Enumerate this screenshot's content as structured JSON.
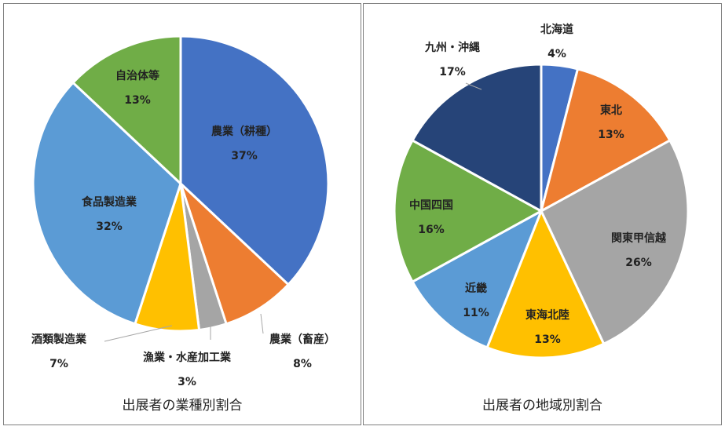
{
  "chart_data": [
    {
      "type": "pie",
      "title": "出展者の業種別割合",
      "slices": [
        {
          "label": "農業（耕種）",
          "value": 37,
          "value_label": "37%",
          "color": "#4472C4"
        },
        {
          "label": "農業（畜産）",
          "value": 8,
          "value_label": "8%",
          "color": "#ED7D31"
        },
        {
          "label": "漁業・水産加工業",
          "value": 3,
          "value_label": "3%",
          "color": "#A5A5A5"
        },
        {
          "label": "酒類製造業",
          "value": 7,
          "value_label": "7%",
          "color": "#FFC000"
        },
        {
          "label": "食品製造業",
          "value": 32,
          "value_label": "32%",
          "color": "#5B9BD5"
        },
        {
          "label": "自治体等",
          "value": 13,
          "value_label": "13%",
          "color": "#70AD47"
        }
      ]
    },
    {
      "type": "pie",
      "title": "出展者の地域別割合",
      "slices": [
        {
          "label": "北海道",
          "value": 4,
          "value_label": "4%",
          "color": "#4472C4"
        },
        {
          "label": "東北",
          "value": 13,
          "value_label": "13%",
          "color": "#ED7D31"
        },
        {
          "label": "関東甲信越",
          "value": 26,
          "value_label": "26%",
          "color": "#A5A5A5"
        },
        {
          "label": "東海北陸",
          "value": 13,
          "value_label": "13%",
          "color": "#FFC000"
        },
        {
          "label": "近畿",
          "value": 11,
          "value_label": "11%",
          "color": "#5B9BD5"
        },
        {
          "label": "中国四国",
          "value": 16,
          "value_label": "16%",
          "color": "#70AD47"
        },
        {
          "label": "九州・沖縄",
          "value": 17,
          "value_label": "17%",
          "color": "#264478"
        }
      ]
    }
  ]
}
